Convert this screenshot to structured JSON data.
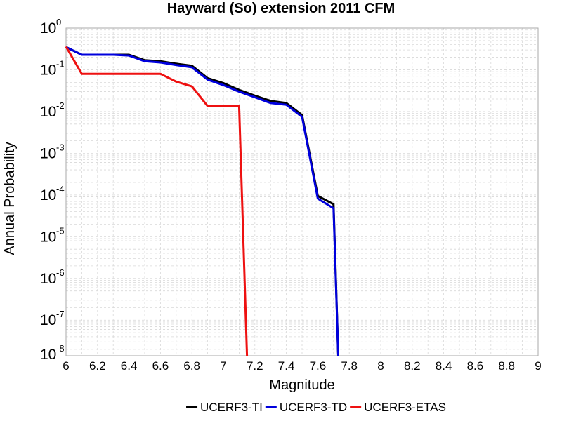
{
  "chart_data": {
    "type": "line",
    "title": "Hayward (So) extension 2011 CFM",
    "xlabel": "Magnitude",
    "ylabel": "Annual Probability",
    "x_scale": "linear",
    "y_scale": "log",
    "xlim": [
      6,
      9
    ],
    "ylim": [
      1.4e-08,
      1.0
    ],
    "x_ticks": [
      "6",
      "6.2",
      "6.4",
      "6.6",
      "6.8",
      "7",
      "7.2",
      "7.4",
      "7.6",
      "7.8",
      "8",
      "8.2",
      "8.4",
      "8.6",
      "8.8",
      "9"
    ],
    "y_ticks": [
      {
        "base": "10",
        "exp": "0"
      },
      {
        "base": "10",
        "exp": "-1"
      },
      {
        "base": "10",
        "exp": "-2"
      },
      {
        "base": "10",
        "exp": "-3"
      },
      {
        "base": "10",
        "exp": "-4"
      },
      {
        "base": "10",
        "exp": "-5"
      },
      {
        "base": "10",
        "exp": "-6"
      },
      {
        "base": "10",
        "exp": "-7"
      },
      {
        "base": "10",
        "exp": "-8"
      }
    ],
    "grid": true,
    "legend_position": "bottom",
    "series": [
      {
        "name": "UCERF3-TI",
        "color": "#000000",
        "x": [
          6.0,
          6.1,
          6.2,
          6.3,
          6.4,
          6.5,
          6.6,
          6.7,
          6.8,
          6.9,
          7.0,
          7.1,
          7.2,
          7.3,
          7.4,
          7.5,
          7.6,
          7.7,
          7.73
        ],
        "y": [
          0.35,
          0.23,
          0.23,
          0.23,
          0.23,
          0.17,
          0.16,
          0.14,
          0.125,
          0.063,
          0.048,
          0.033,
          0.024,
          0.018,
          0.016,
          0.0082,
          9.5e-05,
          6e-05,
          1.4e-08
        ]
      },
      {
        "name": "UCERF3-TD",
        "color": "#0000dd",
        "x": [
          6.0,
          6.1,
          6.2,
          6.3,
          6.4,
          6.5,
          6.6,
          6.7,
          6.8,
          6.9,
          7.0,
          7.1,
          7.2,
          7.3,
          7.4,
          7.5,
          7.6,
          7.7,
          7.73
        ],
        "y": [
          0.35,
          0.23,
          0.23,
          0.23,
          0.22,
          0.16,
          0.15,
          0.13,
          0.115,
          0.058,
          0.043,
          0.03,
          0.022,
          0.016,
          0.0145,
          0.0075,
          8.2e-05,
          4.8e-05,
          1.4e-08
        ]
      },
      {
        "name": "UCERF3-ETAS",
        "color": "#ee1111",
        "x": [
          6.0,
          6.1,
          6.2,
          6.3,
          6.4,
          6.5,
          6.6,
          6.7,
          6.8,
          6.9,
          7.0,
          7.1,
          7.15
        ],
        "y": [
          0.36,
          0.08,
          0.08,
          0.08,
          0.08,
          0.08,
          0.08,
          0.052,
          0.04,
          0.0135,
          0.0135,
          0.0135,
          1.4e-08
        ]
      }
    ]
  }
}
